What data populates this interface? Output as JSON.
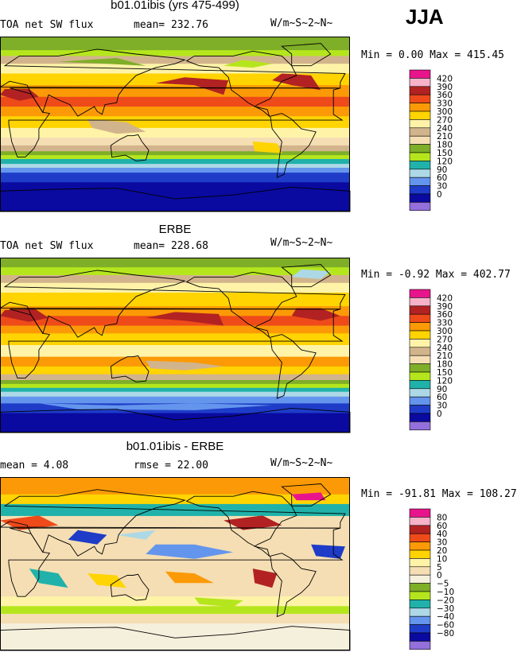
{
  "season": "JJA",
  "panels": [
    {
      "id": "model",
      "title": "b01.01ibis (yrs 475-499)",
      "left_label": "TOA net SW flux",
      "center_label": "mean=  232.76",
      "units": "W/m~S~2~N~",
      "minmax": "Min =    0.00 Max = 415.45",
      "colorbar": {
        "levels": [
          "420",
          "390",
          "360",
          "330",
          "300",
          "270",
          "240",
          "210",
          "180",
          "150",
          "120",
          "90",
          "60",
          "30",
          "0"
        ],
        "colors": [
          "#e8148c",
          "#f7b1c9",
          "#b22222",
          "#ef4a1a",
          "#fb9a06",
          "#ffd400",
          "#fff3a8",
          "#d2b48c",
          "#f5deb3",
          "#7fae28",
          "#b5e61d",
          "#20b2aa",
          "#add8e6",
          "#6495ed",
          "#1e3cc8",
          "#0a0aa0",
          "#9370db"
        ]
      },
      "field": "sw"
    },
    {
      "id": "obs",
      "title": "ERBE",
      "left_label": "TOA net SW flux",
      "center_label": "mean=  228.68",
      "units": "W/m~S~2~N~",
      "minmax": "Min =   -0.92 Max = 402.77",
      "colorbar": {
        "levels": [
          "420",
          "390",
          "360",
          "330",
          "300",
          "270",
          "240",
          "210",
          "180",
          "150",
          "120",
          "90",
          "60",
          "30",
          "0"
        ],
        "colors": [
          "#e8148c",
          "#f7b1c9",
          "#b22222",
          "#ef4a1a",
          "#fb9a06",
          "#ffd400",
          "#fff3a8",
          "#d2b48c",
          "#f5deb3",
          "#7fae28",
          "#b5e61d",
          "#20b2aa",
          "#add8e6",
          "#6495ed",
          "#1e3cc8",
          "#0a0aa0",
          "#9370db"
        ]
      },
      "field": "sw2"
    },
    {
      "id": "diff",
      "title": "b01.01ibis - ERBE",
      "left_label": "mean =    4.08",
      "center_label": "rmse =   22.00",
      "units": "W/m~S~2~N~",
      "minmax": "Min = -91.81 Max = 108.27",
      "colorbar": {
        "levels": [
          "80",
          "60",
          "40",
          "30",
          "20",
          "10",
          "5",
          "0",
          "−5",
          "−10",
          "−20",
          "−30",
          "−40",
          "−60",
          "−80"
        ],
        "colors": [
          "#e8148c",
          "#f7b1c9",
          "#b22222",
          "#ef4a1a",
          "#fb9a06",
          "#ffd400",
          "#fff3a8",
          "#f5deb3",
          "#f5f0dc",
          "#7fae28",
          "#b5e61d",
          "#20b2aa",
          "#add8e6",
          "#6495ed",
          "#1e3cc8",
          "#0a0aa0",
          "#9370db"
        ]
      },
      "field": "diff"
    }
  ],
  "chart_data": {
    "type": "heatmap",
    "description_fields": [
      "TOA net SW flux"
    ],
    "units": "W/m~S~2~N~",
    "season": "JJA",
    "panels": [
      {
        "title": "b01.01ibis (yrs 475-499)",
        "mean": 232.76,
        "min": 0.0,
        "max": 415.45,
        "contour_levels": [
          0,
          30,
          60,
          90,
          120,
          150,
          180,
          210,
          240,
          270,
          300,
          330,
          360,
          390,
          420
        ]
      },
      {
        "title": "ERBE",
        "mean": 228.68,
        "min": -0.92,
        "max": 402.77,
        "contour_levels": [
          0,
          30,
          60,
          90,
          120,
          150,
          180,
          210,
          240,
          270,
          300,
          330,
          360,
          390,
          420
        ]
      },
      {
        "title": "b01.01ibis - ERBE",
        "mean": 4.08,
        "rmse": 22.0,
        "min": -91.81,
        "max": 108.27,
        "contour_levels": [
          -80,
          -60,
          -40,
          -30,
          -20,
          -10,
          -5,
          0,
          5,
          10,
          20,
          30,
          40,
          60,
          80
        ]
      }
    ]
  }
}
